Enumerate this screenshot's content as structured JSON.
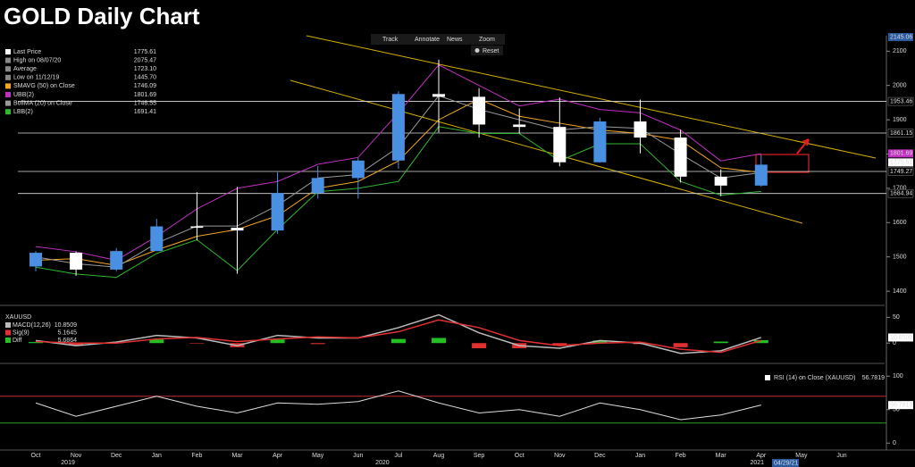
{
  "chart_data": {
    "type": "candlestick",
    "title": "GOLD Daily Chart",
    "categories": [
      "Oct",
      "Nov",
      "Dec",
      "Jan",
      "Feb",
      "Mar",
      "Apr",
      "May",
      "Jun",
      "Jul",
      "Aug",
      "Sep",
      "Oct",
      "Nov",
      "Dec",
      "Jan",
      "Feb",
      "Mar",
      "Apr",
      "May",
      "Jun"
    ],
    "years": [
      {
        "index": 0.8,
        "label": "2019"
      },
      {
        "index": 8.6,
        "label": "2020"
      },
      {
        "index": 17.9,
        "label": "2021"
      }
    ],
    "end_date": "04/29/21",
    "ylim": [
      1369,
      2145.06
    ],
    "top_label": 2145.06,
    "yticks": [
      1400,
      1500,
      1600,
      1700,
      1800,
      1900,
      2000,
      2100
    ],
    "up_color": "#4a90e2",
    "down_color": "#ffffff",
    "open": [
      1472,
      1512,
      1463,
      1517,
      1589,
      1585,
      1577,
      1686,
      1730,
      1781,
      1975,
      1967,
      1886,
      1879,
      1776,
      1895,
      1848,
      1734,
      1708,
      null,
      null
    ],
    "high": [
      1517,
      1516,
      1526,
      1611,
      1689,
      1704,
      1747,
      1765,
      1789,
      1983,
      2075,
      1992,
      1933,
      1965,
      1906,
      1959,
      1871,
      1755,
      1798,
      null,
      null
    ],
    "low": [
      1458,
      1445,
      1458,
      1517,
      1548,
      1451,
      1567,
      1670,
      1670,
      1757,
      1863,
      1848,
      1860,
      1764,
      1775,
      1802,
      1717,
      1677,
      1705,
      null,
      null
    ],
    "close": [
      1512,
      1463,
      1517,
      1589,
      1585,
      1577,
      1686,
      1730,
      1781,
      1975,
      1967,
      1886,
      1879,
      1776,
      1895,
      1848,
      1734,
      1708,
      1769,
      null,
      null
    ],
    "levels": [
      1953.46,
      1861.15,
      1749.27,
      1684.94
    ],
    "stats": [
      {
        "label": "Last Price",
        "value": 1775.61,
        "color": "#ffffff"
      },
      {
        "label": "High on 08/07/20",
        "value": 2075.47,
        "color": "#888888"
      },
      {
        "label": "Average",
        "value": {
          "value": 1723.1,
          "label": "1723.10"
        },
        "color": "#888888"
      },
      {
        "label": "Low on 11/12/19",
        "value": {
          "value": 1445.7,
          "label": "1445.70"
        },
        "color": "#888888"
      }
    ],
    "series": [
      {
        "name": "SMAVG (50)  on Close",
        "last": 1746.09,
        "color": "#f5a623",
        "values": [
          1490,
          1495,
          1475,
          1520,
          1560,
          1580,
          1620,
          1700,
          1720,
          1780,
          1900,
          1960,
          1910,
          1890,
          1870,
          1860,
          1840,
          1760,
          1746,
          null,
          null
        ]
      },
      {
        "name": "UBB(2)",
        "last": 1801.69,
        "color": "#c030c0",
        "values": [
          1530,
          1515,
          1490,
          1560,
          1640,
          1700,
          1720,
          1770,
          1790,
          1920,
          2060,
          2000,
          1940,
          1960,
          1930,
          1920,
          1870,
          1780,
          1801,
          null,
          null
        ]
      },
      {
        "name": "BollMA (20)  on Close",
        "last": 1746.55,
        "color": "#9a9a9a",
        "values": [
          1500,
          1480,
          1470,
          1540,
          1590,
          1590,
          1650,
          1730,
          1740,
          1820,
          1970,
          1930,
          1900,
          1870,
          1880,
          1875,
          1800,
          1730,
          1746,
          null,
          null
        ]
      },
      {
        "name": "LBB(2)",
        "last": 1691.41,
        "color": "#2eb82e",
        "values": [
          1470,
          1450,
          1440,
          1510,
          1550,
          1460,
          1580,
          1690,
          1700,
          1720,
          1880,
          1860,
          1860,
          1780,
          1830,
          1830,
          1720,
          1680,
          1691,
          null,
          null
        ]
      }
    ],
    "toolbar": [
      "Track",
      "Annotate",
      "News",
      "Zoom"
    ],
    "reset": "Reset",
    "macd": {
      "ticker": "XAUUSD",
      "ylim": [
        -36,
        68
      ],
      "yticks": [
        0,
        50
      ],
      "macd": {
        "name": "MACD(12,26)",
        "last": 10.8509,
        "color": "#bbbbbb",
        "values": [
          5,
          -5,
          2,
          15,
          10,
          -5,
          15,
          10,
          10,
          30,
          55,
          20,
          -5,
          -10,
          5,
          0,
          -20,
          -15,
          10.8509,
          null,
          null
        ]
      },
      "signal": {
        "name": "Sig(9)",
        "last": 5.1645,
        "color": "#e03030",
        "values": [
          3,
          0,
          0,
          8,
          11,
          3,
          8,
          12,
          10,
          22,
          45,
          30,
          5,
          -5,
          0,
          2,
          -12,
          -18,
          5.1645,
          null,
          null
        ]
      },
      "diff": {
        "name": "Diff",
        "last": 5.6864,
        "up_color": "#22c022",
        "down_color": "#e03030",
        "values": [
          2,
          -5,
          2,
          7,
          -1,
          -8,
          7,
          -2,
          0,
          8,
          10,
          -10,
          -10,
          -5,
          5,
          -2,
          -8,
          3,
          5.6864,
          null,
          null
        ]
      }
    },
    "rsi": {
      "name": "RSI (14)  on Close (XAUUSD)",
      "last": 56.7819,
      "color": "#dddddd",
      "ylim": [
        -9,
        115
      ],
      "yticks": [
        0,
        50,
        100
      ],
      "upper": 70,
      "lower": 30,
      "values": [
        60,
        40,
        55,
        70,
        55,
        45,
        60,
        58,
        62,
        78,
        60,
        45,
        50,
        40,
        60,
        50,
        35,
        42,
        56.7819,
        null,
        null
      ]
    }
  }
}
